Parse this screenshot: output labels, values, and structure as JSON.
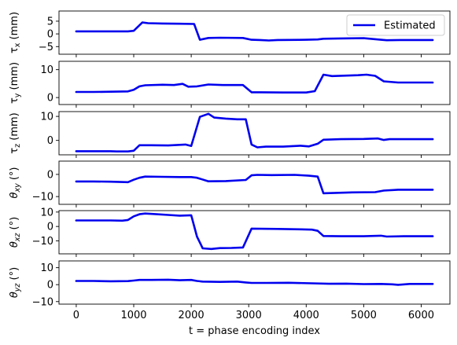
{
  "chart_data": {
    "type": "line",
    "xlabel": "t = phase encoding index",
    "xlim": [
      -300,
      6500
    ],
    "xticks": [
      0,
      1000,
      2000,
      3000,
      4000,
      5000,
      6000
    ],
    "legend": {
      "label": "Estimated",
      "placement": "top-right",
      "panel": 0
    },
    "series_color": "#0000ee",
    "panels": [
      {
        "ylabel_main": "τ",
        "ylabel_sub": "x",
        "ylabel_unit": " (mm)",
        "ylabel_italic": false,
        "ylim": [
          -8,
          9
        ],
        "yticks": [
          -5,
          0,
          5
        ],
        "x": [
          0,
          300,
          600,
          900,
          1000,
          1150,
          1250,
          1500,
          1800,
          2050,
          2150,
          2300,
          2500,
          2900,
          3050,
          3200,
          3350,
          3500,
          4000,
          4200,
          4300,
          4600,
          5000,
          5300,
          5400,
          5700,
          6200
        ],
        "y": [
          1.0,
          1.0,
          1.0,
          1.0,
          1.2,
          4.5,
          4.2,
          4.1,
          4.0,
          3.9,
          -2.3,
          -1.6,
          -1.5,
          -1.6,
          -2.3,
          -2.4,
          -2.6,
          -2.4,
          -2.3,
          -2.2,
          -1.9,
          -1.8,
          -1.7,
          -2.3,
          -2.5,
          -2.4,
          -2.4
        ]
      },
      {
        "ylabel_main": "τ",
        "ylabel_sub": "y",
        "ylabel_unit": " (mm)",
        "ylabel_italic": false,
        "ylim": [
          -2.5,
          13
        ],
        "yticks": [
          0,
          10
        ],
        "x": [
          0,
          300,
          600,
          900,
          1000,
          1100,
          1200,
          1500,
          1700,
          1850,
          1950,
          2100,
          2300,
          2550,
          2900,
          3050,
          3200,
          3600,
          4000,
          4150,
          4300,
          4450,
          4900,
          5050,
          5200,
          5350,
          5600,
          6200
        ],
        "y": [
          2.0,
          2.0,
          2.1,
          2.2,
          2.8,
          4.0,
          4.4,
          4.6,
          4.5,
          4.9,
          3.9,
          4.0,
          4.7,
          4.5,
          4.5,
          1.9,
          1.9,
          1.8,
          1.8,
          2.3,
          8.2,
          7.7,
          8.0,
          8.2,
          7.8,
          5.8,
          5.4,
          5.4
        ]
      },
      {
        "ylabel_main": "τ",
        "ylabel_sub": "z",
        "ylabel_unit": " (mm)",
        "ylabel_italic": false,
        "ylim": [
          -6,
          12
        ],
        "yticks": [
          0,
          10
        ],
        "x": [
          0,
          300,
          600,
          700,
          900,
          1000,
          1100,
          1300,
          1600,
          1900,
          2000,
          2150,
          2300,
          2400,
          2600,
          2800,
          2950,
          3050,
          3150,
          3300,
          3600,
          3900,
          4050,
          4200,
          4300,
          4600,
          5000,
          5250,
          5350,
          5450,
          5700,
          6200
        ],
        "y": [
          -4.5,
          -4.5,
          -4.5,
          -4.6,
          -4.6,
          -4.3,
          -2.0,
          -2.0,
          -2.1,
          -1.7,
          -2.3,
          9.8,
          11.1,
          9.5,
          9.1,
          8.8,
          8.8,
          -1.7,
          -2.9,
          -2.6,
          -2.6,
          -2.2,
          -2.5,
          -1.4,
          0.3,
          0.5,
          0.6,
          0.8,
          0.2,
          0.5,
          0.5,
          0.5
        ]
      },
      {
        "ylabel_main": "θ",
        "ylabel_sub": "xy",
        "ylabel_unit": " (°)",
        "ylabel_italic": true,
        "ylim": [
          -13.5,
          6
        ],
        "yticks": [
          -10,
          0
        ],
        "x": [
          0,
          300,
          600,
          900,
          1000,
          1100,
          1200,
          1500,
          1800,
          2000,
          2100,
          2300,
          2600,
          2950,
          3050,
          3150,
          3400,
          3800,
          4050,
          4200,
          4300,
          4800,
          5200,
          5350,
          5600,
          6200
        ],
        "y": [
          -3.2,
          -3.2,
          -3.3,
          -3.5,
          -2.4,
          -1.5,
          -1.0,
          -1.1,
          -1.2,
          -1.2,
          -1.5,
          -3.1,
          -3.0,
          -2.5,
          -0.4,
          -0.2,
          -0.3,
          -0.2,
          -0.6,
          -1.0,
          -8.5,
          -8.1,
          -8.0,
          -7.3,
          -6.9,
          -6.9
        ]
      },
      {
        "ylabel_main": "θ",
        "ylabel_sub": "xz",
        "ylabel_unit": " (°)",
        "ylabel_italic": true,
        "ylim": [
          -19,
          11
        ],
        "yticks": [
          -10,
          0,
          10
        ],
        "x": [
          0,
          300,
          600,
          800,
          900,
          1000,
          1100,
          1200,
          1400,
          1600,
          1800,
          2000,
          2100,
          2200,
          2350,
          2500,
          2700,
          2900,
          3050,
          3200,
          3500,
          3900,
          4100,
          4200,
          4300,
          4600,
          5000,
          5300,
          5400,
          5700,
          6200
        ],
        "y": [
          4.2,
          4.2,
          4.2,
          4.0,
          4.5,
          7.0,
          8.5,
          9.0,
          8.5,
          8.0,
          7.5,
          7.8,
          -7.0,
          -15.2,
          -15.6,
          -15.0,
          -14.9,
          -14.6,
          -1.5,
          -1.6,
          -1.7,
          -2.0,
          -2.2,
          -3.0,
          -6.6,
          -6.8,
          -6.8,
          -6.4,
          -7.0,
          -6.8,
          -6.8
        ]
      },
      {
        "ylabel_main": "θ",
        "ylabel_sub": "yz",
        "ylabel_unit": " (°)",
        "ylabel_italic": true,
        "ylim": [
          -11.5,
          14
        ],
        "yticks": [
          -10,
          0,
          10
        ],
        "x": [
          0,
          300,
          600,
          900,
          1000,
          1100,
          1300,
          1600,
          1800,
          2000,
          2100,
          2200,
          2500,
          2800,
          2950,
          3050,
          3300,
          3700,
          4100,
          4400,
          4700,
          5000,
          5300,
          5500,
          5600,
          5800,
          6200
        ],
        "y": [
          2.2,
          2.2,
          2.0,
          2.1,
          2.4,
          2.8,
          2.8,
          2.9,
          2.6,
          2.8,
          2.2,
          1.8,
          1.6,
          1.8,
          1.3,
          1.0,
          1.0,
          1.1,
          0.8,
          0.5,
          0.6,
          0.3,
          0.4,
          0.2,
          -0.1,
          0.4,
          0.4
        ]
      }
    ]
  }
}
